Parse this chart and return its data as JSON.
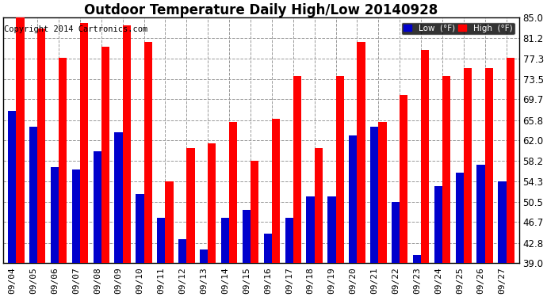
{
  "title": "Outdoor Temperature Daily High/Low 20140928",
  "copyright": "Copyright 2014 Cartronics.com",
  "legend_low": "Low  (°F)",
  "legend_high": "High  (°F)",
  "dates": [
    "09/04",
    "09/05",
    "09/06",
    "09/07",
    "09/08",
    "09/09",
    "09/10",
    "09/11",
    "09/12",
    "09/13",
    "09/14",
    "09/15",
    "09/16",
    "09/17",
    "09/18",
    "09/19",
    "09/20",
    "09/21",
    "09/22",
    "09/23",
    "09/24",
    "09/25",
    "09/26",
    "09/27"
  ],
  "highs": [
    85.0,
    83.0,
    77.5,
    84.0,
    79.5,
    83.5,
    80.5,
    54.3,
    60.5,
    61.5,
    65.5,
    58.2,
    66.0,
    74.0,
    60.5,
    74.0,
    80.5,
    65.5,
    70.5,
    79.0,
    74.0,
    75.5,
    75.5,
    77.5
  ],
  "lows": [
    67.5,
    64.5,
    57.0,
    56.5,
    60.0,
    63.5,
    52.0,
    47.5,
    43.5,
    41.5,
    47.5,
    49.0,
    44.5,
    47.5,
    51.5,
    51.5,
    63.0,
    64.5,
    50.5,
    40.5,
    53.5,
    56.0,
    57.5,
    54.3
  ],
  "ylim_min": 39.0,
  "ylim_max": 85.0,
  "yticks": [
    39.0,
    42.8,
    46.7,
    50.5,
    54.3,
    58.2,
    62.0,
    65.8,
    69.7,
    73.5,
    77.3,
    81.2,
    85.0
  ],
  "bar_color_high": "#ff0000",
  "bar_color_low": "#0000cc",
  "bg_color": "#ffffff",
  "plot_bg_color": "#ffffff",
  "grid_color": "#999999",
  "title_fontsize": 12,
  "copyright_fontsize": 7.5,
  "tick_fontsize": 8.5,
  "bar_width": 0.38
}
